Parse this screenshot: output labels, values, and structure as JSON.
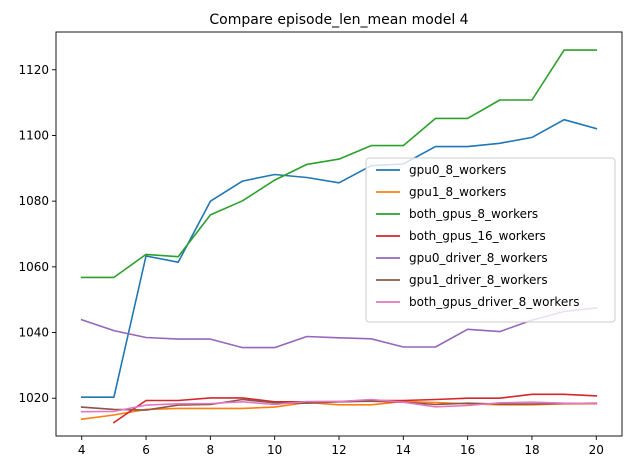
{
  "chart_data": {
    "type": "line",
    "title": "Compare episode_len_mean model 4",
    "xlabel": "",
    "ylabel": "",
    "xlim": [
      3.2,
      20.8
    ],
    "ylim": [
      1008.5,
      1131.5
    ],
    "xticks": [
      4,
      6,
      8,
      10,
      12,
      14,
      16,
      18,
      20
    ],
    "yticks": [
      1020,
      1040,
      1060,
      1080,
      1100,
      1120
    ],
    "grid": false,
    "legend_placement": "center-right",
    "series": [
      {
        "name": "gpu0_8_workers",
        "color": "#1f77b4",
        "x": [
          4,
          5,
          6,
          7,
          8,
          9,
          10,
          11,
          12,
          13,
          14,
          15,
          16,
          17,
          18,
          19,
          20
        ],
        "values": [
          1020.3,
          1020.3,
          1063.3,
          1061.4,
          1080.0,
          1086.1,
          1088.1,
          1087.2,
          1085.6,
          1090.8,
          1091.3,
          1096.6,
          1096.6,
          1097.6,
          1099.4,
          1104.8,
          1102.1
        ]
      },
      {
        "name": "gpu1_8_workers",
        "color": "#ff7f0e",
        "x": [
          4,
          5,
          6,
          7,
          8,
          9,
          10,
          11,
          12,
          13,
          14,
          15,
          16,
          17,
          18,
          19,
          20
        ],
        "values": [
          1013.6,
          1014.9,
          1016.6,
          1016.9,
          1016.9,
          1016.9,
          1017.3,
          1018.7,
          1018.0,
          1018.0,
          1019.0,
          1018.7,
          1018.3,
          1018.0,
          1018.0,
          1018.3,
          1018.3
        ]
      },
      {
        "name": "both_gpus_8_workers",
        "color": "#2ca02c",
        "x": [
          4,
          5,
          6,
          7,
          8,
          9,
          10,
          11,
          12,
          13,
          14,
          15,
          16,
          17,
          18,
          19,
          20
        ],
        "values": [
          1056.8,
          1056.8,
          1063.8,
          1063.1,
          1075.8,
          1080.1,
          1086.4,
          1091.2,
          1092.8,
          1096.9,
          1096.9,
          1105.2,
          1105.2,
          1110.8,
          1110.8,
          1126.0,
          1126.0
        ]
      },
      {
        "name": "both_gpus_16_workers",
        "color": "#d62728",
        "x": [
          5,
          6,
          7,
          8,
          9,
          10,
          11,
          12,
          13,
          14,
          15,
          16,
          17,
          18,
          19,
          20
        ],
        "values": [
          1012.6,
          1019.3,
          1019.3,
          1020.1,
          1020.1,
          1018.9,
          1018.9,
          1019.0,
          1019.3,
          1019.3,
          1019.6,
          1020.0,
          1020.0,
          1021.2,
          1021.2,
          1020.7
        ]
      },
      {
        "name": "gpu0_driver_8_workers",
        "color": "#9467bd",
        "x": [
          4,
          5,
          6,
          7,
          8,
          9,
          10,
          11,
          12,
          13,
          14,
          15,
          16,
          17,
          18,
          19,
          20
        ],
        "values": [
          1043.9,
          1040.6,
          1038.5,
          1038.0,
          1038.0,
          1035.4,
          1035.4,
          1038.8,
          1038.4,
          1038.1,
          1035.6,
          1035.6,
          1041.0,
          1040.3,
          1043.8,
          1046.4,
          1047.5
        ]
      },
      {
        "name": "gpu1_driver_8_workers",
        "color": "#8c564b",
        "x": [
          4,
          5,
          6,
          7,
          8,
          9,
          10,
          11,
          12,
          13,
          14,
          15,
          16,
          17,
          18,
          19,
          20
        ],
        "values": [
          1017.3,
          1016.6,
          1016.4,
          1017.9,
          1018.1,
          1019.6,
          1018.6,
          1018.5,
          1018.9,
          1019.1,
          1018.8,
          1018.1,
          1018.5,
          1018.2,
          1018.2,
          1018.4,
          1018.5
        ]
      },
      {
        "name": "both_gpus_driver_8_workers",
        "color": "#e377c2",
        "x": [
          4,
          5,
          6,
          7,
          8,
          9,
          10,
          11,
          12,
          13,
          14,
          15,
          16,
          17,
          18,
          19,
          20
        ],
        "values": [
          1015.9,
          1016.0,
          1017.9,
          1018.3,
          1018.4,
          1018.9,
          1018.1,
          1019.0,
          1019.0,
          1019.6,
          1018.8,
          1017.4,
          1017.8,
          1018.6,
          1018.8,
          1018.5,
          1018.4
        ]
      }
    ]
  }
}
